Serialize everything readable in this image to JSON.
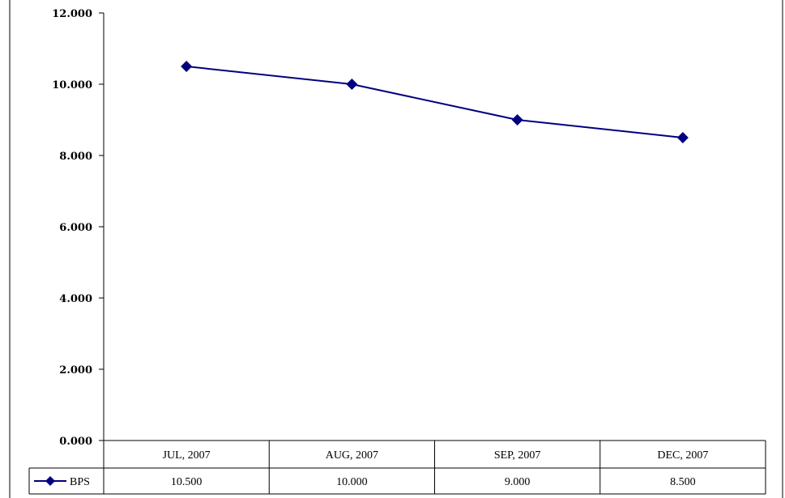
{
  "chart_data": {
    "type": "line",
    "categories": [
      "JUL, 2007",
      "AUG, 2007",
      "SEP, 2007",
      "DEC, 2007"
    ],
    "series": [
      {
        "name": "BPS",
        "values": [
          10.5,
          10.0,
          9.0,
          8.5
        ],
        "value_labels": [
          "10.500",
          "10.000",
          "9.000",
          "8.500"
        ]
      }
    ],
    "yticks": [
      0,
      2,
      4,
      6,
      8,
      10,
      12
    ],
    "ytick_labels": [
      "0.000",
      "2.000",
      "4.000",
      "6.000",
      "8.000",
      "10.000",
      "12.000"
    ],
    "ylim": [
      0,
      12
    ],
    "grid": false,
    "legend": "data-table-left",
    "series_color": "#000080",
    "marker": "diamond"
  }
}
